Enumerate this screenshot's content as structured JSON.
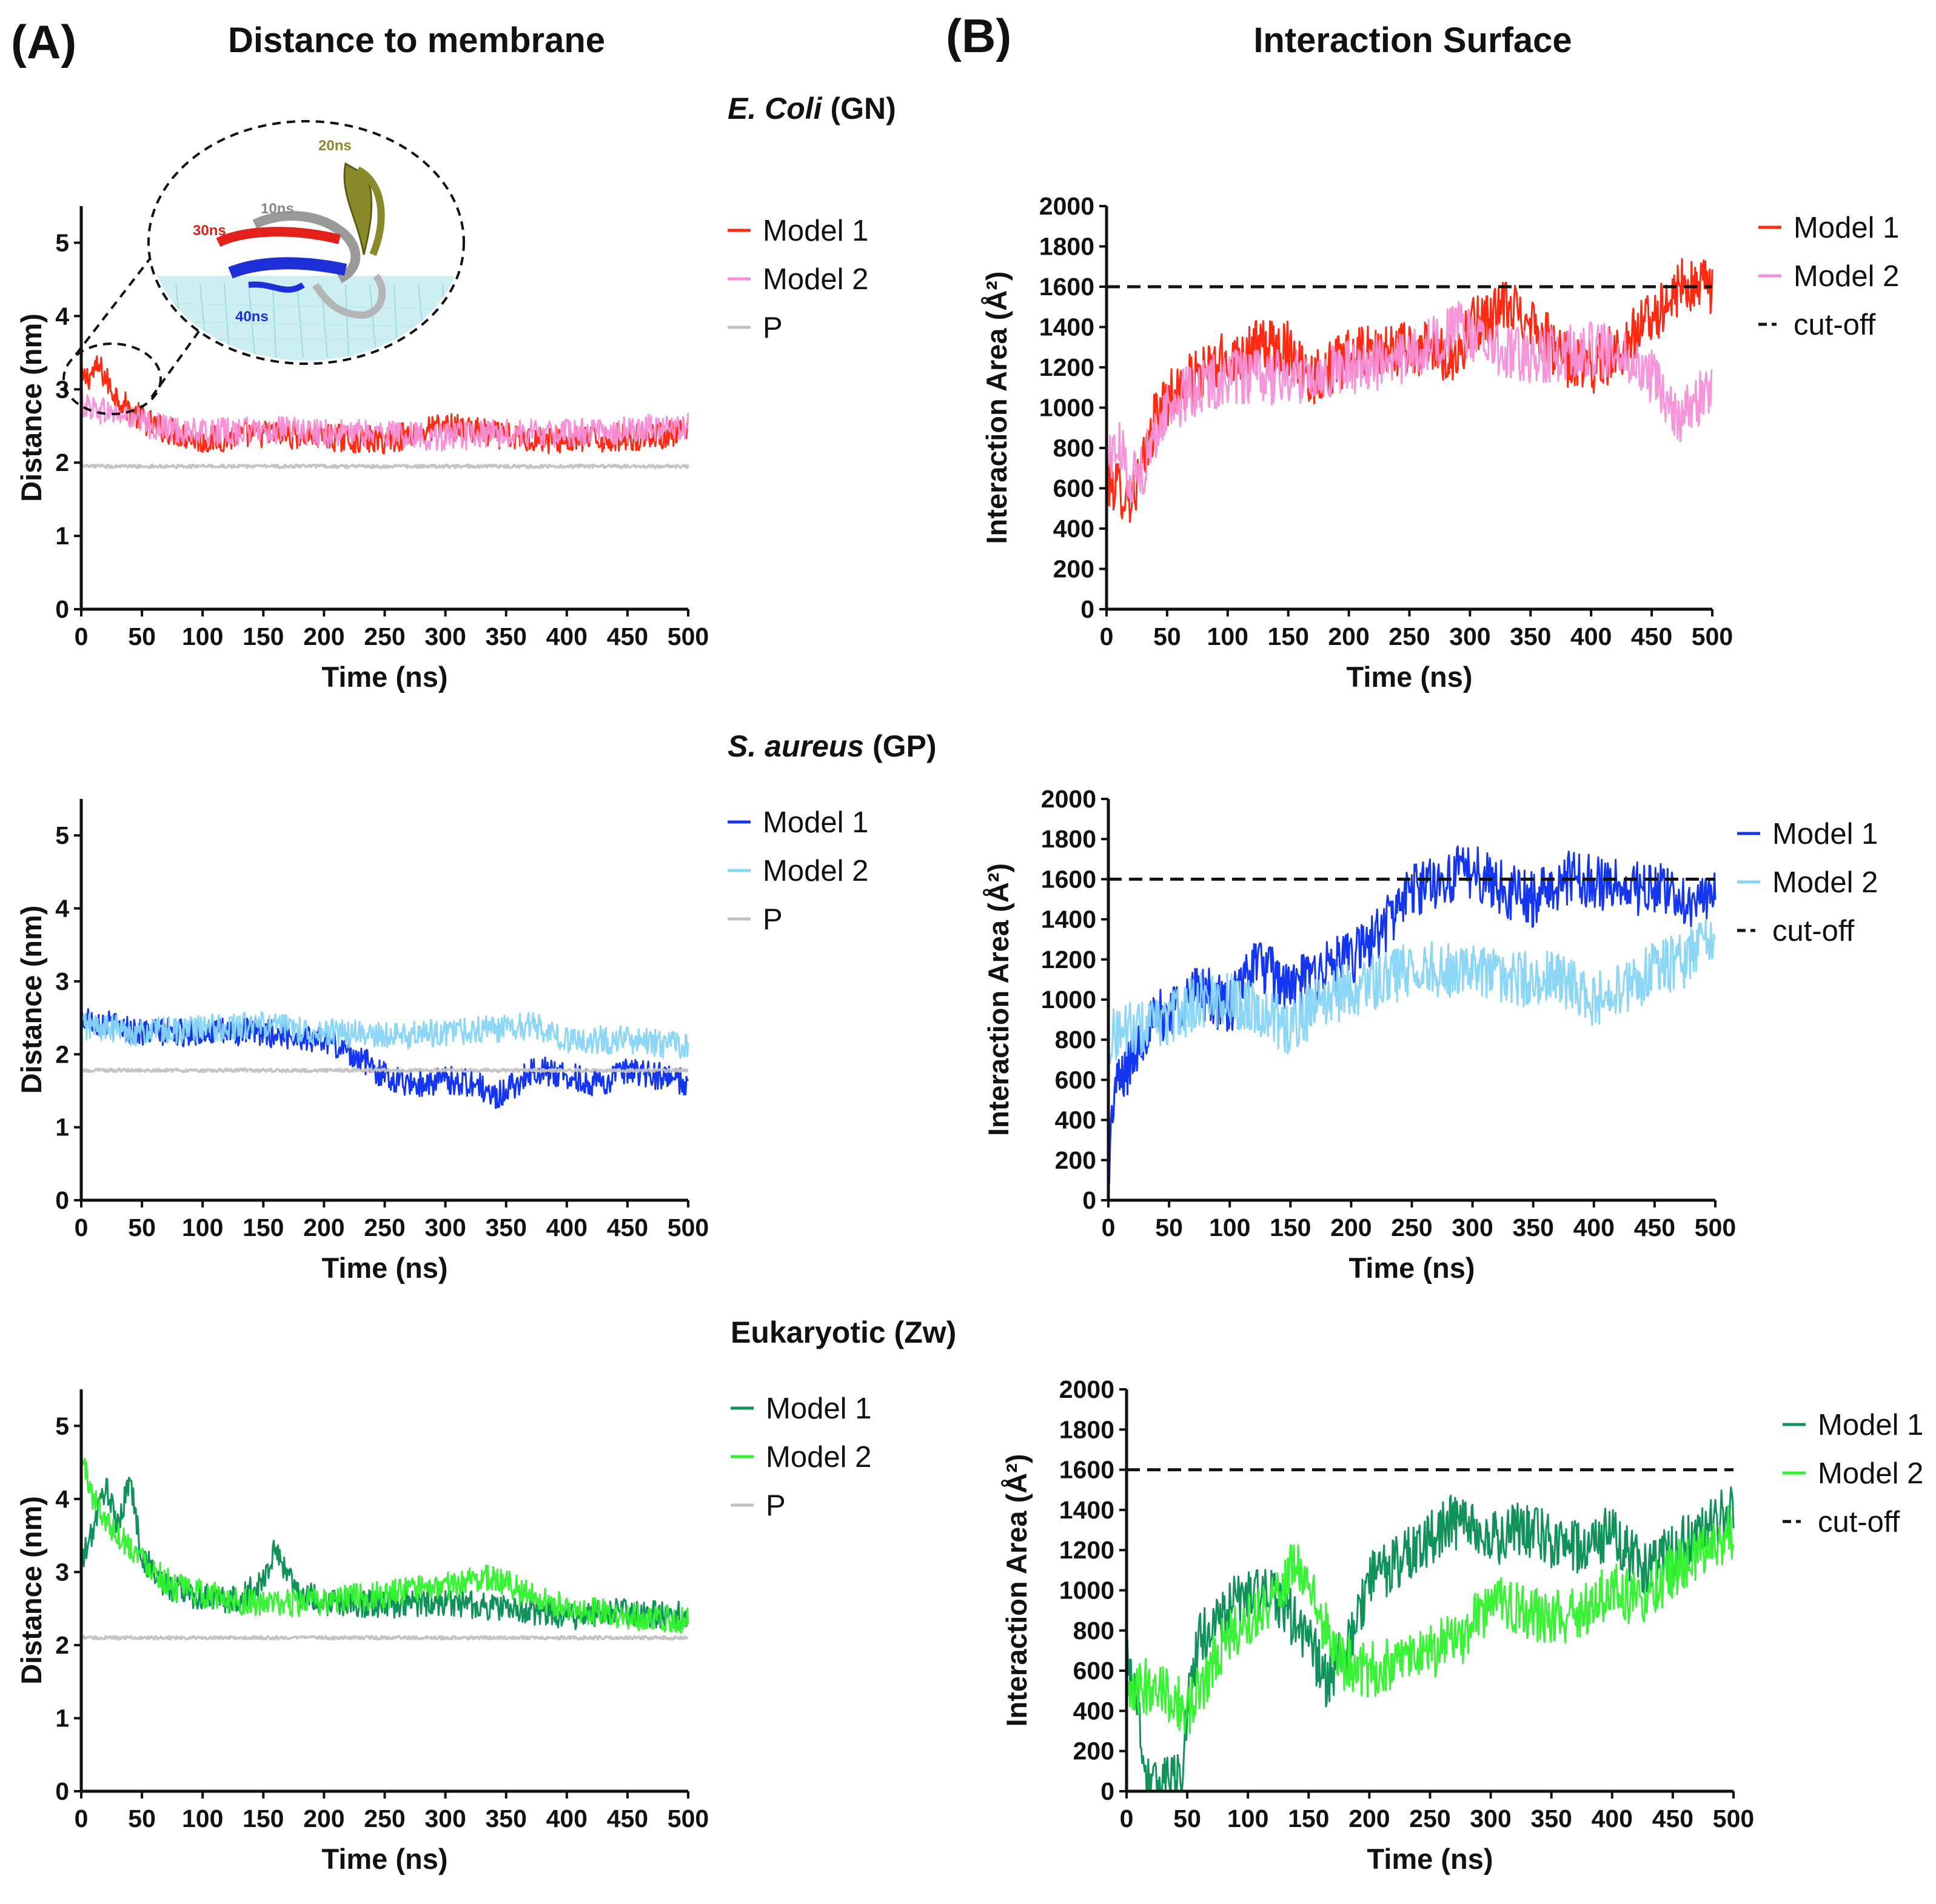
{
  "figure": {
    "panel_a_label": "(A)",
    "panel_a_title": "Distance to membrane",
    "panel_b_label": "(B)",
    "panel_b_title": "Interaction Surface",
    "rows": [
      {
        "organism_italic": "E. Coli",
        "organism_suffix": " (GN)"
      },
      {
        "organism_italic": "S. aureus",
        "organism_suffix": " (GP)"
      },
      {
        "organism_italic": "",
        "organism_suffix": "Eukaryotic (Zw)"
      }
    ],
    "inset_labels": [
      "20ns",
      "10ns",
      "30ns",
      "40ns"
    ]
  },
  "colors": {
    "ecoli_model1": "#ff2a12",
    "ecoli_model2": "#f78fd8",
    "saureus_model1": "#1436ee",
    "saureus_model2": "#86d4f6",
    "euk_model1": "#11925a",
    "euk_model2": "#2ff22c",
    "phosphate": "#c2c2c2",
    "cutoff": "#111111"
  },
  "chart_data": [
    {
      "id": "dist_ecoli",
      "type": "line",
      "title": "Distance to membrane",
      "subtitle": "E. Coli (GN)",
      "xlabel": "Time (ns)",
      "ylabel": "Distance (nm)",
      "xlim": [
        0,
        500
      ],
      "ylim": [
        0,
        5.5
      ],
      "xticks": [
        0,
        50,
        100,
        150,
        200,
        250,
        300,
        350,
        400,
        450,
        500
      ],
      "yticks": [
        0,
        1,
        2,
        3,
        4,
        5
      ],
      "series": [
        {
          "name": "Model 1",
          "color": "#ff2a12",
          "x": [
            0,
            15,
            25,
            40,
            60,
            80,
            100,
            150,
            200,
            250,
            300,
            350,
            400,
            450,
            500
          ],
          "y": [
            3.1,
            3.3,
            3.0,
            2.7,
            2.5,
            2.4,
            2.3,
            2.4,
            2.35,
            2.3,
            2.5,
            2.35,
            2.3,
            2.35,
            2.4
          ]
        },
        {
          "name": "Model 2",
          "color": "#f78fd8",
          "x": [
            0,
            20,
            40,
            60,
            80,
            100,
            150,
            200,
            250,
            300,
            350,
            400,
            450,
            500
          ],
          "y": [
            2.8,
            2.7,
            2.6,
            2.5,
            2.45,
            2.4,
            2.45,
            2.4,
            2.4,
            2.35,
            2.4,
            2.4,
            2.45,
            2.5
          ]
        },
        {
          "name": "P",
          "color": "#c2c2c2",
          "x": [
            0,
            100,
            200,
            300,
            400,
            500
          ],
          "y": [
            1.95,
            1.95,
            1.95,
            1.95,
            1.95,
            1.95
          ]
        }
      ],
      "legend": "right"
    },
    {
      "id": "area_ecoli",
      "type": "line",
      "title": "Interaction Surface",
      "subtitle": "E. Coli (GN)",
      "xlabel": "Time (ns)",
      "ylabel": "Interaction Area (Å²)",
      "xlim": [
        0,
        500
      ],
      "ylim": [
        0,
        2000
      ],
      "xticks": [
        0,
        50,
        100,
        150,
        200,
        250,
        300,
        350,
        400,
        450,
        500
      ],
      "yticks": [
        0,
        200,
        400,
        600,
        800,
        1000,
        1200,
        1400,
        1600,
        1800,
        2000
      ],
      "series": [
        {
          "name": "Model 1",
          "color": "#ff2a12",
          "x": [
            0,
            10,
            20,
            30,
            40,
            50,
            75,
            100,
            125,
            150,
            170,
            200,
            250,
            290,
            300,
            330,
            350,
            375,
            400,
            425,
            450,
            475,
            500
          ],
          "y": [
            650,
            600,
            550,
            700,
            950,
            1050,
            1150,
            1250,
            1300,
            1300,
            1150,
            1250,
            1300,
            1250,
            1400,
            1500,
            1450,
            1250,
            1200,
            1300,
            1450,
            1600,
            1600
          ]
        },
        {
          "name": "Model 2",
          "color": "#f78fd8",
          "x": [
            0,
            10,
            20,
            30,
            40,
            50,
            75,
            100,
            150,
            200,
            250,
            290,
            300,
            350,
            400,
            430,
            450,
            470,
            490,
            500
          ],
          "y": [
            750,
            800,
            650,
            700,
            850,
            1000,
            1100,
            1150,
            1150,
            1200,
            1250,
            1400,
            1350,
            1250,
            1300,
            1250,
            1150,
            950,
            1050,
            1100
          ]
        },
        {
          "name": "cut-off",
          "color": "#111111",
          "style": "dashed",
          "x": [
            0,
            500
          ],
          "y": [
            1600,
            1600
          ]
        }
      ],
      "legend": "right"
    },
    {
      "id": "dist_saureus",
      "type": "line",
      "title": "Distance to membrane",
      "subtitle": "S. aureus (GP)",
      "xlabel": "Time (ns)",
      "ylabel": "Distance (nm)",
      "xlim": [
        0,
        500
      ],
      "ylim": [
        0,
        5.5
      ],
      "xticks": [
        0,
        50,
        100,
        150,
        200,
        250,
        300,
        350,
        400,
        450,
        500
      ],
      "yticks": [
        0,
        1,
        2,
        3,
        4,
        5
      ],
      "series": [
        {
          "name": "Model 1",
          "color": "#1436ee",
          "x": [
            0,
            25,
            50,
            100,
            150,
            200,
            225,
            250,
            275,
            300,
            325,
            340,
            375,
            400,
            425,
            450,
            475,
            500
          ],
          "y": [
            2.5,
            2.4,
            2.3,
            2.3,
            2.3,
            2.2,
            2.0,
            1.7,
            1.6,
            1.65,
            1.6,
            1.4,
            1.8,
            1.7,
            1.6,
            1.75,
            1.7,
            1.6
          ]
        },
        {
          "name": "Model 2",
          "color": "#86d4f6",
          "x": [
            0,
            50,
            100,
            150,
            200,
            250,
            300,
            350,
            375,
            400,
            450,
            500
          ],
          "y": [
            2.4,
            2.3,
            2.35,
            2.4,
            2.3,
            2.25,
            2.3,
            2.35,
            2.4,
            2.2,
            2.2,
            2.1
          ]
        },
        {
          "name": "P",
          "color": "#c2c2c2",
          "x": [
            0,
            100,
            200,
            300,
            400,
            500
          ],
          "y": [
            1.78,
            1.78,
            1.78,
            1.78,
            1.78,
            1.78
          ]
        }
      ],
      "legend": "right"
    },
    {
      "id": "area_saureus",
      "type": "line",
      "title": "Interaction Surface",
      "subtitle": "S. aureus (GP)",
      "xlabel": "Time (ns)",
      "ylabel": "Interaction Area (Å²)",
      "xlim": [
        0,
        500
      ],
      "ylim": [
        0,
        2000
      ],
      "xticks": [
        0,
        50,
        100,
        150,
        200,
        250,
        300,
        350,
        400,
        450,
        500
      ],
      "yticks": [
        0,
        200,
        400,
        600,
        800,
        1000,
        1200,
        1400,
        1600,
        1800,
        2000
      ],
      "series": [
        {
          "name": "Model 1",
          "color": "#1436ee",
          "x": [
            0,
            5,
            15,
            30,
            50,
            75,
            100,
            120,
            150,
            175,
            200,
            225,
            250,
            275,
            300,
            325,
            350,
            375,
            400,
            425,
            450,
            475,
            500
          ],
          "y": [
            150,
            550,
            650,
            850,
            950,
            1050,
            950,
            1200,
            1050,
            1150,
            1200,
            1350,
            1550,
            1600,
            1650,
            1550,
            1500,
            1600,
            1600,
            1550,
            1550,
            1500,
            1500
          ]
        },
        {
          "name": "Model 2",
          "color": "#86d4f6",
          "x": [
            0,
            10,
            25,
            50,
            75,
            100,
            125,
            150,
            175,
            200,
            225,
            250,
            275,
            300,
            325,
            350,
            375,
            400,
            425,
            450,
            475,
            500
          ],
          "y": [
            800,
            850,
            850,
            900,
            1000,
            1000,
            950,
            850,
            1000,
            1050,
            1100,
            1150,
            1150,
            1150,
            1100,
            1100,
            1100,
            1000,
            1050,
            1150,
            1200,
            1300
          ]
        },
        {
          "name": "cut-off",
          "color": "#111111",
          "style": "dashed",
          "x": [
            0,
            500
          ],
          "y": [
            1600,
            1600
          ]
        }
      ],
      "legend": "right"
    },
    {
      "id": "dist_euk",
      "type": "line",
      "title": "Distance to membrane",
      "subtitle": "Eukaryotic (Zw)",
      "xlabel": "Time (ns)",
      "ylabel": "Distance (nm)",
      "xlim": [
        0,
        500
      ],
      "ylim": [
        0,
        5.5
      ],
      "xticks": [
        0,
        50,
        100,
        150,
        200,
        250,
        300,
        350,
        400,
        450,
        500
      ],
      "yticks": [
        0,
        1,
        2,
        3,
        4,
        5
      ],
      "series": [
        {
          "name": "Model 1",
          "color": "#11925a",
          "x": [
            0,
            10,
            20,
            30,
            40,
            50,
            70,
            100,
            130,
            150,
            160,
            180,
            200,
            250,
            300,
            350,
            400,
            450,
            500
          ],
          "y": [
            3.1,
            3.6,
            4.2,
            3.6,
            4.3,
            3.2,
            2.8,
            2.65,
            2.6,
            2.9,
            3.3,
            2.7,
            2.6,
            2.55,
            2.6,
            2.5,
            2.4,
            2.45,
            2.4
          ]
        },
        {
          "name": "Model 2",
          "color": "#2ff22c",
          "x": [
            0,
            10,
            25,
            50,
            75,
            100,
            150,
            200,
            250,
            300,
            340,
            360,
            400,
            450,
            500
          ],
          "y": [
            4.6,
            4.0,
            3.6,
            3.2,
            2.8,
            2.7,
            2.55,
            2.6,
            2.7,
            2.8,
            2.95,
            2.75,
            2.5,
            2.4,
            2.35
          ]
        },
        {
          "name": "P",
          "color": "#c2c2c2",
          "x": [
            0,
            100,
            200,
            300,
            400,
            500
          ],
          "y": [
            2.1,
            2.1,
            2.1,
            2.1,
            2.1,
            2.1
          ]
        }
      ],
      "legend": "right"
    },
    {
      "id": "area_euk",
      "type": "line",
      "title": "Interaction Surface",
      "subtitle": "Eukaryotic (Zw)",
      "xlabel": "Time (ns)",
      "ylabel": "Interaction Area (Å²)",
      "xlim": [
        0,
        500
      ],
      "ylim": [
        0,
        2000
      ],
      "xticks": [
        0,
        50,
        100,
        150,
        200,
        250,
        300,
        350,
        400,
        450,
        500
      ],
      "yticks": [
        0,
        200,
        400,
        600,
        800,
        1000,
        1200,
        1400,
        1600,
        1800,
        2000
      ],
      "series": [
        {
          "name": "Model 1",
          "color": "#11925a",
          "x": [
            0,
            8,
            15,
            25,
            35,
            45,
            50,
            60,
            75,
            100,
            125,
            150,
            165,
            185,
            200,
            225,
            250,
            265,
            300,
            325,
            350,
            375,
            400,
            425,
            450,
            475,
            500
          ],
          "y": [
            700,
            500,
            100,
            0,
            150,
            0,
            450,
            750,
            850,
            1000,
            950,
            750,
            550,
            750,
            1050,
            1150,
            1250,
            1350,
            1250,
            1300,
            1250,
            1200,
            1300,
            1100,
            1200,
            1300,
            1400
          ]
        },
        {
          "name": "Model 2",
          "color": "#2ff22c",
          "x": [
            0,
            10,
            25,
            40,
            50,
            60,
            75,
            100,
            125,
            140,
            150,
            175,
            200,
            225,
            250,
            275,
            300,
            325,
            350,
            375,
            400,
            425,
            450,
            475,
            500
          ],
          "y": [
            400,
            500,
            550,
            450,
            400,
            500,
            700,
            850,
            1000,
            1150,
            1000,
            650,
            600,
            650,
            700,
            750,
            950,
            900,
            850,
            900,
            1000,
            950,
            1100,
            1200,
            1300
          ]
        },
        {
          "name": "cut-off",
          "color": "#111111",
          "style": "dashed",
          "x": [
            0,
            500
          ],
          "y": [
            1600,
            1600
          ]
        }
      ],
      "legend": "right"
    }
  ]
}
